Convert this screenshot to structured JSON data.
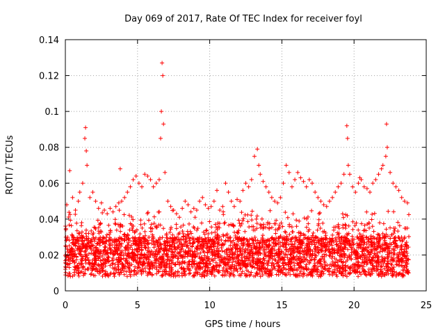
{
  "chart_data": {
    "type": "scatter",
    "title": "Day 069 of 2017, Rate Of TEC Index for receiver foyl",
    "xlabel": "GPS time / hours",
    "ylabel": "ROTI / TECUs",
    "xlim": [
      0,
      25
    ],
    "ylim": [
      0,
      0.14
    ],
    "x_ticks": [
      0,
      5,
      10,
      15,
      20,
      25
    ],
    "y_ticks": [
      0,
      0.02,
      0.04,
      0.06,
      0.08,
      0.1,
      0.12,
      0.14
    ],
    "x_tick_labels": [
      "0",
      "5",
      "10",
      "15",
      "20",
      "25"
    ],
    "y_tick_labels": [
      "0",
      "0.02",
      "0.04",
      "0.06",
      "0.08",
      "0.1",
      "0.12",
      "0.14"
    ],
    "grid": true,
    "marker": "+",
    "color": "#ff0000",
    "series": [
      {
        "name": "ROTI",
        "x": [
          0.1,
          0.3,
          0.5,
          0.7,
          0.9,
          1.0,
          1.2,
          1.35,
          1.4,
          1.45,
          1.5,
          1.7,
          1.9,
          2.1,
          2.3,
          2.5,
          2.7,
          2.9,
          3.1,
          3.3,
          3.5,
          3.7,
          3.8,
          3.9,
          4.1,
          4.3,
          4.5,
          4.7,
          4.9,
          5.1,
          5.3,
          5.5,
          5.7,
          5.9,
          6.1,
          6.3,
          6.5,
          6.6,
          6.65,
          6.7,
          6.75,
          6.8,
          6.9,
          7.1,
          7.3,
          7.5,
          7.7,
          7.9,
          8.1,
          8.3,
          8.5,
          8.7,
          8.9,
          9.1,
          9.3,
          9.5,
          9.7,
          9.9,
          10.1,
          10.3,
          10.5,
          10.7,
          10.9,
          11.1,
          11.3,
          11.5,
          11.7,
          11.9,
          12.1,
          12.3,
          12.5,
          12.7,
          12.9,
          13.1,
          13.3,
          13.4,
          13.5,
          13.7,
          13.9,
          14.1,
          14.3,
          14.5,
          14.7,
          14.9,
          15.1,
          15.3,
          15.5,
          15.7,
          15.9,
          16.1,
          16.3,
          16.5,
          16.7,
          16.9,
          17.1,
          17.3,
          17.5,
          17.7,
          17.9,
          18.1,
          18.3,
          18.5,
          18.7,
          18.9,
          19.1,
          19.3,
          19.5,
          19.55,
          19.6,
          19.7,
          19.9,
          20.1,
          20.3,
          20.4,
          20.5,
          20.7,
          20.9,
          21.1,
          21.3,
          21.5,
          21.7,
          21.9,
          22.0,
          22.2,
          22.25,
          22.3,
          22.5,
          22.7,
          22.9,
          23.1,
          23.3,
          23.5,
          23.7
        ],
        "y": [
          0.048,
          0.067,
          0.052,
          0.045,
          0.05,
          0.055,
          0.06,
          0.085,
          0.091,
          0.078,
          0.07,
          0.052,
          0.055,
          0.05,
          0.046,
          0.049,
          0.045,
          0.043,
          0.046,
          0.044,
          0.047,
          0.049,
          0.068,
          0.05,
          0.052,
          0.055,
          0.058,
          0.062,
          0.064,
          0.06,
          0.058,
          0.065,
          0.064,
          0.062,
          0.058,
          0.06,
          0.062,
          0.085,
          0.1,
          0.127,
          0.12,
          0.093,
          0.066,
          0.05,
          0.047,
          0.045,
          0.043,
          0.041,
          0.046,
          0.05,
          0.048,
          0.044,
          0.046,
          0.045,
          0.05,
          0.052,
          0.048,
          0.046,
          0.047,
          0.05,
          0.056,
          0.045,
          0.047,
          0.06,
          0.055,
          0.05,
          0.047,
          0.051,
          0.05,
          0.056,
          0.06,
          0.058,
          0.062,
          0.075,
          0.079,
          0.07,
          0.065,
          0.061,
          0.058,
          0.055,
          0.052,
          0.05,
          0.049,
          0.052,
          0.06,
          0.07,
          0.066,
          0.058,
          0.062,
          0.066,
          0.063,
          0.061,
          0.058,
          0.062,
          0.06,
          0.055,
          0.052,
          0.05,
          0.048,
          0.047,
          0.05,
          0.052,
          0.055,
          0.058,
          0.06,
          0.065,
          0.092,
          0.085,
          0.07,
          0.065,
          0.058,
          0.055,
          0.06,
          0.063,
          0.062,
          0.058,
          0.057,
          0.055,
          0.06,
          0.062,
          0.065,
          0.068,
          0.07,
          0.075,
          0.093,
          0.08,
          0.066,
          0.06,
          0.058,
          0.056,
          0.052,
          0.05,
          0.049
        ]
      }
    ]
  }
}
